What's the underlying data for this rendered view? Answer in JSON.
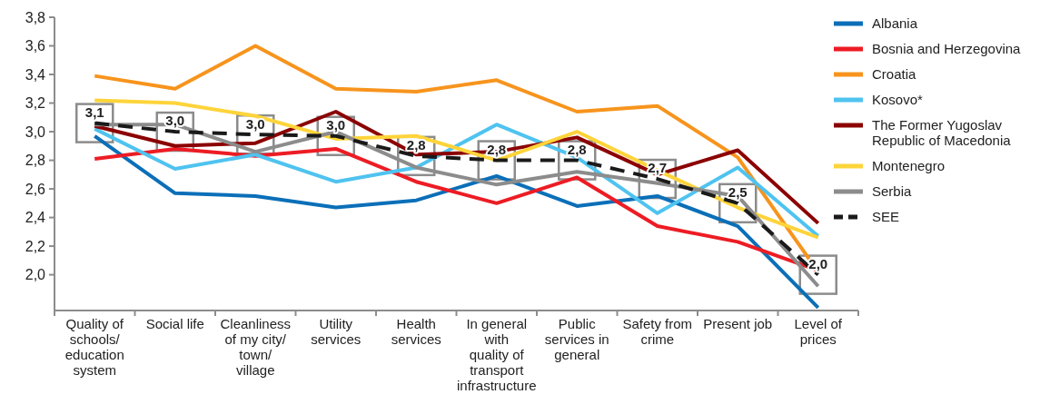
{
  "chart_data": {
    "type": "line",
    "categories": [
      "Quality of schools/ education system",
      "Social life",
      "Cleanliness of my city/ town/ village",
      "Utility services",
      "Health services",
      "In general with quality of transport infrastructure",
      "Public services in general",
      "Safety from crime",
      "Present job",
      "Level of prices"
    ],
    "ylim": [
      1.75,
      3.8
    ],
    "yticks": [
      {
        "value": 2.0,
        "label": "2,0"
      },
      {
        "value": 2.2,
        "label": "2,2"
      },
      {
        "value": 2.4,
        "label": "2,4"
      },
      {
        "value": 2.6,
        "label": "2,6"
      },
      {
        "value": 2.8,
        "label": "2,8"
      },
      {
        "value": 3.0,
        "label": "3,0"
      },
      {
        "value": 3.2,
        "label": "3,2"
      },
      {
        "value": 3.4,
        "label": "3,4"
      },
      {
        "value": 3.6,
        "label": "3,6"
      },
      {
        "value": 3.8,
        "label": "3,8"
      }
    ],
    "legend": "right",
    "grid": false,
    "series": [
      {
        "name": "Albania",
        "color": "#0b6fb8",
        "values": [
          2.97,
          2.57,
          2.55,
          2.47,
          2.52,
          2.69,
          2.48,
          2.55,
          2.34,
          1.77
        ]
      },
      {
        "name": "Bosnia and Herzegovina",
        "color": "#ed1c24",
        "values": [
          2.81,
          2.88,
          2.83,
          2.88,
          2.65,
          2.5,
          2.68,
          2.34,
          2.23,
          2.03
        ]
      },
      {
        "name": "Croatia",
        "color": "#f7941d",
        "values": [
          3.39,
          3.3,
          3.6,
          3.3,
          3.28,
          3.36,
          3.14,
          3.18,
          2.82,
          2.02
        ]
      },
      {
        "name": "Kosovo*",
        "color": "#4fc3f0",
        "values": [
          3.02,
          2.74,
          2.84,
          2.65,
          2.75,
          3.05,
          2.82,
          2.43,
          2.75,
          2.27
        ]
      },
      {
        "name": "The Former Yugoslav Republic of Macedonia",
        "color": "#8b0000",
        "values": [
          3.04,
          2.9,
          2.92,
          3.14,
          2.84,
          2.86,
          2.96,
          2.7,
          2.87,
          2.36
        ]
      },
      {
        "name": "Montenegro",
        "color": "#fdd43a",
        "values": [
          3.22,
          3.2,
          3.11,
          2.95,
          2.97,
          2.8,
          3.0,
          2.73,
          2.47,
          2.26
        ]
      },
      {
        "name": "Serbia",
        "color": "#8c8c8c",
        "values": [
          3.05,
          3.05,
          2.86,
          3.0,
          2.75,
          2.63,
          2.72,
          2.64,
          2.55,
          1.92
        ]
      },
      {
        "name": "SEE",
        "color": "#1a1a1a",
        "line_style": "dashed",
        "marker": "square",
        "values": [
          3.06,
          3.0,
          2.98,
          2.97,
          2.83,
          2.8,
          2.8,
          2.67,
          2.5,
          2.0
        ],
        "value_labels": [
          "3,1",
          "3,0",
          "3,0",
          "3,0",
          "2,8",
          "2,8",
          "2,8",
          "2,7",
          "2,5",
          "2,0"
        ]
      }
    ]
  }
}
